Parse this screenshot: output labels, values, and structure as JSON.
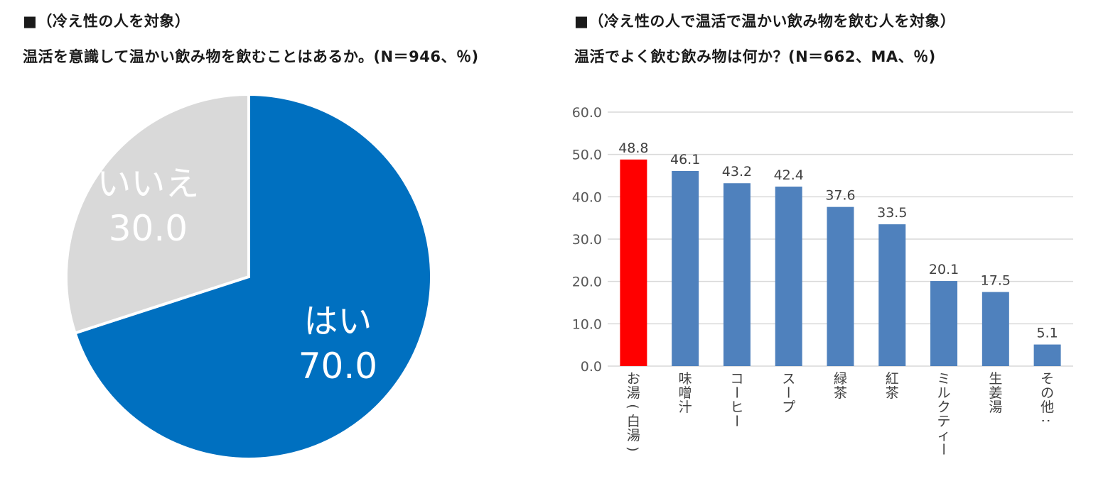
{
  "left": {
    "heading": "■（冷え性の人を対象）",
    "question": "温活を意識して温かい飲み物を飲むことはあるか。(N＝946、％)"
  },
  "right": {
    "heading": "■（冷え性の人で温活で温かい飲み物を飲む人を対象）",
    "question": "温活でよく飲む飲み物は何か？(N＝662、MA、％)"
  },
  "colors": {
    "pie_yes": "#0070c0",
    "pie_no": "#d9d9d9",
    "bar_default": "#4f81bd",
    "bar_highlight": "#ff0000",
    "grid": "#d9d9d9"
  },
  "chart_data": [
    {
      "type": "pie",
      "categories": [
        "はい",
        "いいえ"
      ],
      "values": [
        70.0,
        30.0
      ],
      "value_labels": [
        "70.0",
        "30.0"
      ],
      "start_angle_deg": 0,
      "direction": "clockwise"
    },
    {
      "type": "bar",
      "categories": [
        "お湯(白湯)",
        "味噌汁",
        "コーヒー",
        "スープ",
        "緑茶",
        "紅茶",
        "ミルクティー",
        "生姜湯",
        "その他:"
      ],
      "values": [
        48.8,
        46.1,
        43.2,
        42.4,
        37.6,
        33.5,
        20.1,
        17.5,
        5.1
      ],
      "value_labels": [
        "48.8",
        "46.1",
        "43.2",
        "42.4",
        "37.6",
        "33.5",
        "20.1",
        "17.5",
        "5.1"
      ],
      "highlight_index": 0,
      "ylim": [
        0,
        60
      ],
      "yticks": [
        "0.0",
        "10.0",
        "20.0",
        "30.0",
        "40.0",
        "50.0",
        "60.0"
      ],
      "grid": true,
      "category_label_orientation": "vertical"
    }
  ]
}
